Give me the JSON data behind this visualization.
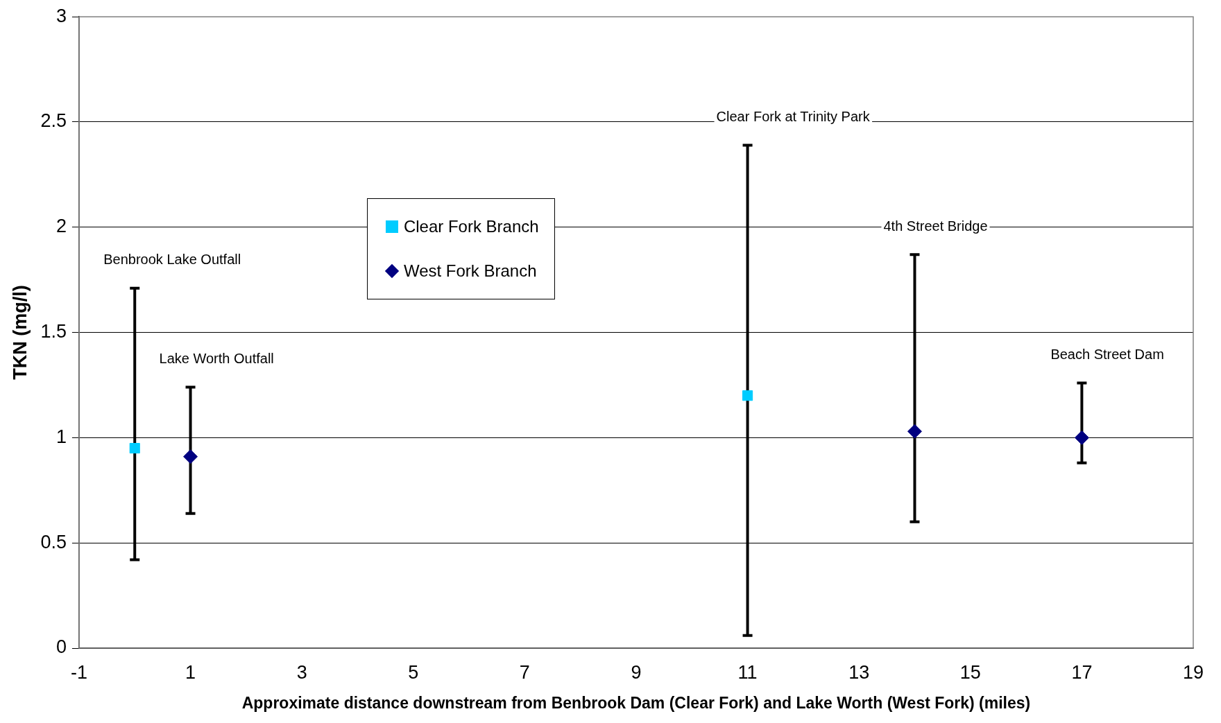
{
  "chart_data": {
    "type": "scatter",
    "xlabel": "Approximate distance downstream from Benbrook Dam (Clear Fork) and Lake Worth (West Fork) (miles)",
    "ylabel": "TKN (mg/l)",
    "series": [
      {
        "name": "Clear Fork Branch",
        "color": "#00ccff",
        "marker": "square",
        "x": [
          0,
          11
        ],
        "values": [
          0.95,
          1.2
        ],
        "errors": [
          [
            0.42,
            1.71
          ],
          [
            0.06,
            2.39
          ]
        ]
      },
      {
        "name": "West Fork Branch",
        "color": "#000080",
        "marker": "diamond",
        "x": [
          1,
          14,
          17
        ],
        "values": [
          0.91,
          1.03,
          1.0
        ],
        "errors": [
          [
            0.64,
            1.24
          ],
          [
            0.6,
            1.87
          ],
          [
            0.88,
            1.26
          ]
        ]
      }
    ],
    "annotations": [
      "Benbrook Lake Outfall",
      "Lake Worth Outfall",
      "Clear Fork at Trinity Park",
      "4th Street Bridge",
      "Beach Street Dam"
    ],
    "xlim": [
      -1,
      19
    ],
    "xticks": [
      -1,
      1,
      3,
      5,
      7,
      9,
      11,
      13,
      15,
      17,
      19
    ],
    "ylim": [
      0,
      3
    ],
    "yticks": [
      0,
      0.5,
      1,
      1.5,
      2,
      2.5,
      3
    ],
    "grid": "y",
    "legend": "top left"
  }
}
